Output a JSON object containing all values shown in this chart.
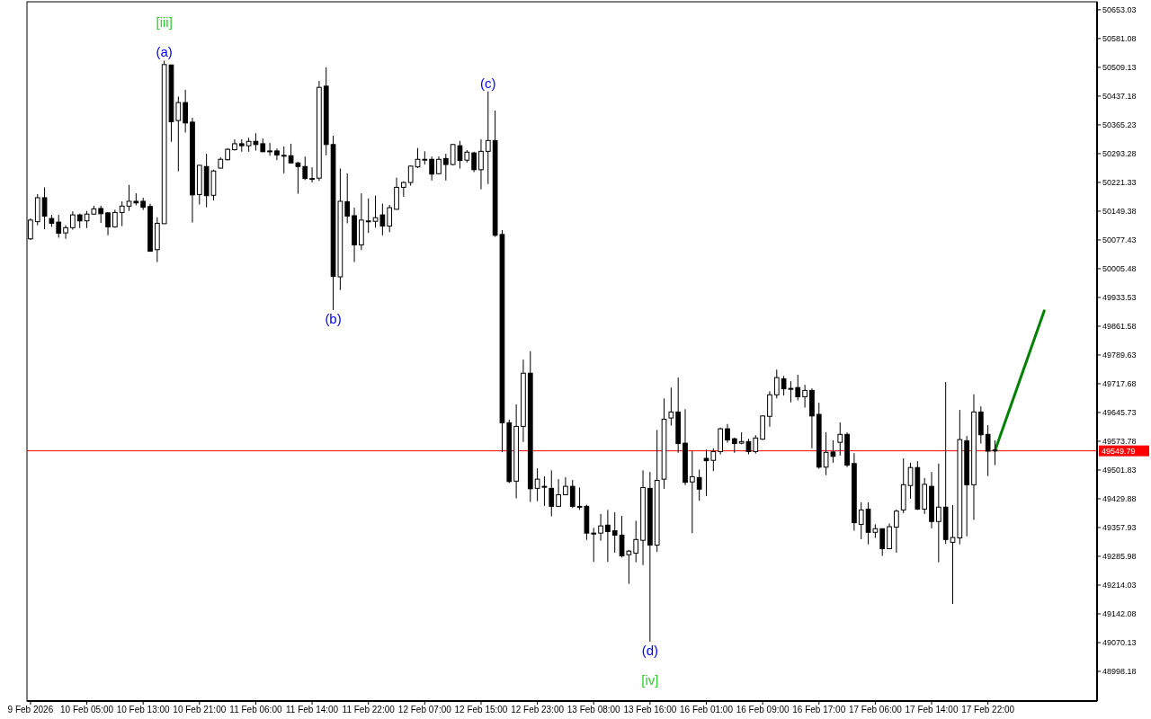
{
  "chart_data": {
    "type": "candlestick",
    "categories": [
      "9 Feb 2026",
      null,
      null,
      null,
      null,
      null,
      null,
      null,
      "10 Feb 05:00",
      null,
      null,
      null,
      null,
      null,
      null,
      null,
      "10 Feb 13:00",
      null,
      null,
      null,
      null,
      null,
      null,
      null,
      "10 Feb 21:00",
      null,
      null,
      null,
      null,
      null,
      null,
      null,
      "11 Feb 06:00",
      null,
      null,
      null,
      null,
      null,
      null,
      null,
      "11 Feb 14:00",
      null,
      null,
      null,
      null,
      null,
      null,
      null,
      "11 Feb 22:00",
      null,
      null,
      null,
      null,
      null,
      null,
      null,
      "12 Feb 07:00",
      null,
      null,
      null,
      null,
      null,
      null,
      null,
      "12 Feb 15:00",
      null,
      null,
      null,
      null,
      null,
      null,
      null,
      "12 Feb 23:00",
      null,
      null,
      null,
      null,
      null,
      null,
      null,
      "13 Feb 08:00",
      null,
      null,
      null,
      null,
      null,
      null,
      null,
      "13 Feb 16:00",
      null,
      null,
      null,
      null,
      null,
      null,
      null,
      "16 Feb 01:00",
      null,
      null,
      null,
      null,
      null,
      null,
      null,
      "16 Feb 09:00",
      null,
      null,
      null,
      null,
      null,
      null,
      null,
      "16 Feb 17:00",
      null,
      null,
      null,
      null,
      null,
      null,
      null,
      "17 Feb 06:00",
      null,
      null,
      null,
      null,
      null,
      null,
      null,
      "17 Feb 14:00",
      null,
      null,
      null,
      null,
      null,
      null,
      null,
      "17 Feb 22:00",
      null,
      null,
      null,
      null,
      null,
      null,
      null,
      null,
      null,
      null,
      null,
      null,
      null,
      null,
      null
    ],
    "ohlc": [
      [
        50080,
        50131,
        50077,
        50127
      ],
      [
        50123,
        50192,
        50114,
        50183
      ],
      [
        50183,
        50209,
        50104,
        50137
      ],
      [
        50131,
        50140,
        50110,
        50119
      ],
      [
        50122,
        50140,
        50083,
        50094
      ],
      [
        50095,
        50114,
        50080,
        50108
      ],
      [
        50108,
        50149,
        50103,
        50140
      ],
      [
        50140,
        50143,
        50107,
        50125
      ],
      [
        50125,
        50150,
        50107,
        50142
      ],
      [
        50142,
        50163,
        50140,
        50155
      ],
      [
        50156,
        50163,
        50120,
        50143
      ],
      [
        50145,
        50147,
        50089,
        50110
      ],
      [
        50110,
        50153,
        50108,
        50146
      ],
      [
        50146,
        50174,
        50112,
        50162
      ],
      [
        50162,
        50215,
        50150,
        50174
      ],
      [
        50174,
        50194,
        50164,
        50170
      ],
      [
        50174,
        50183,
        50152,
        50159
      ],
      [
        50161,
        50168,
        50049,
        50049
      ],
      [
        50053,
        50134,
        50022,
        50119
      ],
      [
        50118,
        50526,
        50118,
        50516
      ],
      [
        50515,
        50516,
        50323,
        50373
      ],
      [
        50376,
        50436,
        50249,
        50421
      ],
      [
        50421,
        50453,
        50346,
        50370
      ],
      [
        50372,
        50383,
        50121,
        50190
      ],
      [
        50191,
        50265,
        50166,
        50264
      ],
      [
        50261,
        50293,
        50159,
        50188
      ],
      [
        50189,
        50253,
        50176,
        50250
      ],
      [
        50257,
        50284,
        50256,
        50279
      ],
      [
        50278,
        50307,
        50276,
        50304
      ],
      [
        50303,
        50329,
        50301,
        50318
      ],
      [
        50318,
        50329,
        50298,
        50313
      ],
      [
        50313,
        50333,
        50298,
        50324
      ],
      [
        50324,
        50344,
        50301,
        50316
      ],
      [
        50318,
        50331,
        50297,
        50298
      ],
      [
        50300,
        50320,
        50288,
        50298
      ],
      [
        50300,
        50306,
        50277,
        50290
      ],
      [
        50289,
        50311,
        50244,
        50288
      ],
      [
        50288,
        50318,
        50270,
        50270
      ],
      [
        50270,
        50273,
        50193,
        50261
      ],
      [
        50261,
        50286,
        50227,
        50231
      ],
      [
        50230,
        50259,
        50221,
        50231
      ],
      [
        50232,
        50475,
        50225,
        50459
      ],
      [
        50462,
        50509,
        50289,
        50316
      ],
      [
        50316,
        50338,
        49902,
        49986
      ],
      [
        49985,
        50256,
        49952,
        50174
      ],
      [
        50173,
        50244,
        50119,
        50137
      ],
      [
        50138,
        50158,
        50022,
        50065
      ],
      [
        50065,
        50194,
        50052,
        50127
      ],
      [
        50124,
        50181,
        50095,
        50125
      ],
      [
        50124,
        50188,
        50108,
        50133
      ],
      [
        50140,
        50168,
        50089,
        50112
      ],
      [
        50112,
        50165,
        50097,
        50158
      ],
      [
        50154,
        50233,
        50153,
        50209
      ],
      [
        50209,
        50224,
        50185,
        50221
      ],
      [
        50221,
        50263,
        50213,
        50262
      ],
      [
        50260,
        50307,
        50257,
        50279
      ],
      [
        50279,
        50299,
        50266,
        50279
      ],
      [
        50279,
        50286,
        50226,
        50242
      ],
      [
        50243,
        50286,
        50242,
        50279
      ],
      [
        50281,
        50293,
        50226,
        50266
      ],
      [
        50266,
        50317,
        50264,
        50316
      ],
      [
        50313,
        50325,
        50256,
        50276
      ],
      [
        50277,
        50302,
        50271,
        50297
      ],
      [
        50295,
        50298,
        50247,
        50253
      ],
      [
        50253,
        50329,
        50204,
        50299
      ],
      [
        50299,
        50449,
        50217,
        50326
      ],
      [
        50326,
        50401,
        50085,
        50089
      ],
      [
        50091,
        50102,
        49547,
        49620
      ],
      [
        49620,
        49628,
        49469,
        49473
      ],
      [
        49474,
        49666,
        49431,
        49611
      ],
      [
        49611,
        49778,
        49572,
        49744
      ],
      [
        49744,
        49799,
        49422,
        49455
      ],
      [
        49456,
        49506,
        49424,
        49479
      ],
      [
        49461,
        49486,
        49412,
        49460
      ],
      [
        49456,
        49501,
        49386,
        49411
      ],
      [
        49411,
        49479,
        49411,
        49440
      ],
      [
        49440,
        49484,
        49440,
        49461
      ],
      [
        49461,
        49477,
        49407,
        49411
      ],
      [
        49411,
        49458,
        49402,
        49410
      ],
      [
        49411,
        49415,
        49327,
        49344
      ],
      [
        49344,
        49357,
        49272,
        49343
      ],
      [
        49344,
        49392,
        49325,
        49362
      ],
      [
        49364,
        49402,
        49272,
        49348
      ],
      [
        49350,
        49396,
        49295,
        49339
      ],
      [
        49339,
        49387,
        49283,
        49287
      ],
      [
        49290,
        49302,
        49217,
        49299
      ],
      [
        49294,
        49375,
        49271,
        49328
      ],
      [
        49326,
        49501,
        49264,
        49458
      ],
      [
        49456,
        49497,
        49072,
        49314
      ],
      [
        49314,
        49602,
        49297,
        49476
      ],
      [
        49479,
        49681,
        49455,
        49629
      ],
      [
        49632,
        49708,
        49613,
        49647
      ],
      [
        49647,
        49733,
        49545,
        49568
      ],
      [
        49569,
        49654,
        49464,
        49471
      ],
      [
        49472,
        49550,
        49344,
        49485
      ],
      [
        49483,
        49503,
        49425,
        49454
      ],
      [
        49531,
        49553,
        49437,
        49525
      ],
      [
        49526,
        49556,
        49499,
        49548
      ],
      [
        49548,
        49608,
        49541,
        49605
      ],
      [
        49605,
        49617,
        49570,
        49577
      ],
      [
        49580,
        49583,
        49545,
        49568
      ],
      [
        49569,
        49596,
        49566,
        49573
      ],
      [
        49573,
        49580,
        49541,
        49548
      ],
      [
        49548,
        49589,
        49543,
        49582
      ],
      [
        49579,
        49638,
        49577,
        49637
      ],
      [
        49636,
        49699,
        49610,
        49690
      ],
      [
        49690,
        49753,
        49681,
        49733
      ],
      [
        49730,
        49737,
        49688,
        49705
      ],
      [
        49706,
        49724,
        49671,
        49705
      ],
      [
        49708,
        49740,
        49676,
        49685
      ],
      [
        49685,
        49715,
        49658,
        49701
      ],
      [
        49701,
        49706,
        49556,
        49637
      ],
      [
        49641,
        49670,
        49505,
        49509
      ],
      [
        49509,
        49596,
        49489,
        49546
      ],
      [
        49547,
        49576,
        49520,
        49536
      ],
      [
        49571,
        49621,
        49538,
        49591
      ],
      [
        49591,
        49596,
        49509,
        49514
      ],
      [
        49518,
        49544,
        49350,
        49370
      ],
      [
        49366,
        49421,
        49329,
        49402
      ],
      [
        49404,
        49421,
        49316,
        49346
      ],
      [
        49346,
        49366,
        49332,
        49355
      ],
      [
        49355,
        49355,
        49287,
        49305
      ],
      [
        49305,
        49368,
        49305,
        49360
      ],
      [
        49359,
        49403,
        49295,
        49399
      ],
      [
        49402,
        49531,
        49394,
        49465
      ],
      [
        49463,
        49520,
        49430,
        49508
      ],
      [
        49508,
        49524,
        49402,
        49404
      ],
      [
        49404,
        49482,
        49392,
        49466
      ],
      [
        49461,
        49497,
        49356,
        49373
      ],
      [
        49373,
        49518,
        49271,
        49409
      ],
      [
        49409,
        49722,
        49317,
        49328
      ],
      [
        49321,
        49414,
        49167,
        49333
      ],
      [
        49332,
        49652,
        49316,
        49578
      ],
      [
        49575,
        49587,
        49336,
        49465
      ],
      [
        49465,
        49691,
        49377,
        49647
      ],
      [
        49647,
        49661,
        49568,
        49590
      ],
      [
        49591,
        49614,
        49487,
        49549
      ],
      [
        49552,
        49576,
        49514,
        49550
      ],
      null,
      null,
      null,
      null,
      null,
      null,
      null,
      null,
      null,
      null,
      null,
      null,
      null,
      null
    ],
    "series": [
      {
        "type": "line",
        "color": "#008000",
        "values": [
          null,
          null,
          null,
          null,
          null,
          null,
          null,
          null,
          null,
          null,
          null,
          null,
          null,
          null,
          null,
          null,
          null,
          null,
          null,
          null,
          null,
          null,
          null,
          null,
          null,
          null,
          null,
          null,
          null,
          null,
          null,
          null,
          null,
          null,
          null,
          null,
          null,
          null,
          null,
          null,
          null,
          null,
          null,
          null,
          null,
          null,
          null,
          null,
          null,
          null,
          null,
          null,
          null,
          null,
          null,
          null,
          null,
          null,
          null,
          null,
          null,
          null,
          null,
          null,
          null,
          null,
          null,
          null,
          null,
          null,
          null,
          null,
          null,
          null,
          null,
          null,
          null,
          null,
          null,
          null,
          null,
          null,
          null,
          null,
          null,
          null,
          null,
          null,
          null,
          null,
          null,
          null,
          null,
          null,
          null,
          null,
          null,
          null,
          null,
          null,
          null,
          null,
          null,
          null,
          null,
          null,
          null,
          null,
          null,
          null,
          null,
          null,
          null,
          null,
          null,
          null,
          null,
          null,
          null,
          null,
          null,
          null,
          null,
          null,
          null,
          null,
          null,
          null,
          null,
          null,
          null,
          null,
          null,
          null,
          null,
          null,
          null,
          49550,
          null,
          null,
          null,
          null,
          null,
          null,
          49900,
          null,
          null,
          null,
          null,
          null,
          null,
          null
        ]
      }
    ],
    "ylim": [
      48924,
      50673
    ],
    "yticks": [
      50653.03,
      50581.08,
      50509.13,
      50437.18,
      50365.23,
      50293.28,
      50221.33,
      50149.38,
      50077.43,
      50005.48,
      49933.53,
      49861.58,
      49789.63,
      49717.68,
      49645.73,
      49573.78,
      49501.83,
      49429.88,
      49357.93,
      49285.98,
      49214.03,
      49142.08,
      49070.13,
      48998.18
    ],
    "ref_lines": [
      {
        "axis": "y",
        "value": 49549.79,
        "label": "49549.79",
        "color": "#ff0000"
      }
    ],
    "annotations": [
      {
        "text": "(a)",
        "y": 50526
      },
      {
        "text": "[iii]",
        "y": 50526
      },
      {
        "text": "(b)",
        "y": 49902
      },
      {
        "text": "(c)",
        "y": 50449
      },
      {
        "text": "(d)",
        "y": 49072
      },
      {
        "text": "[iv]",
        "y": 49072
      }
    ]
  }
}
